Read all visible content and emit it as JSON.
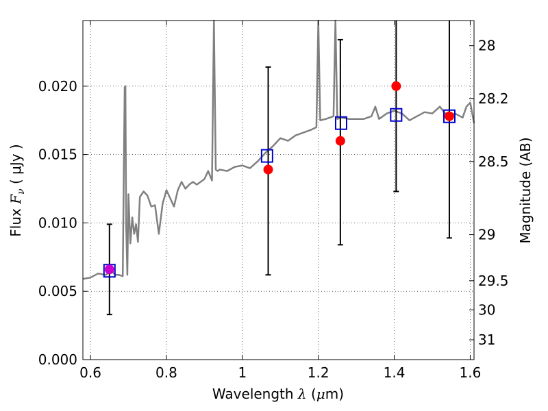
{
  "chart_data": {
    "type": "line",
    "xlabel_prefix": "Wavelength  ",
    "xlabel_symbol": "λ",
    "xlabel_units_open": " (",
    "xlabel_units_mu": "μ",
    "xlabel_units_close": "m)",
    "ylabel_prefix": "Flux  ",
    "ylabel_symbol": "F",
    "ylabel_sub": "ν",
    "ylabel_units": "  ( μJy )",
    "y2label": "Magnitude (AB)",
    "xlim": [
      0.58,
      1.61
    ],
    "ylim": [
      0.0,
      0.0248
    ],
    "grid": true,
    "x_ticks": [
      {
        "v": 0.6,
        "label": "0.6"
      },
      {
        "v": 0.8,
        "label": "0.8"
      },
      {
        "v": 1.0,
        "label": "1"
      },
      {
        "v": 1.2,
        "label": "1.2"
      },
      {
        "v": 1.4,
        "label": "1.4"
      },
      {
        "v": 1.6,
        "label": "1.6"
      }
    ],
    "y_ticks": [
      {
        "v": 0.0,
        "label": "0.000"
      },
      {
        "v": 0.005,
        "label": "0.005"
      },
      {
        "v": 0.01,
        "label": "0.010"
      },
      {
        "v": 0.015,
        "label": "0.015"
      },
      {
        "v": 0.02,
        "label": "0.020"
      }
    ],
    "y2_ticks": [
      {
        "mag": 28,
        "label": "28",
        "flux": 0.02296
      },
      {
        "mag": 28.2,
        "label": "28.2",
        "flux": 0.0191
      },
      {
        "mag": 28.5,
        "label": "28.5",
        "flux": 0.01449
      },
      {
        "mag": 29,
        "label": "29",
        "flux": 0.00914
      },
      {
        "mag": 29.5,
        "label": "29.5",
        "flux": 0.00577
      },
      {
        "mag": 30,
        "label": "30",
        "flux": 0.00364
      },
      {
        "mag": 31,
        "label": "31",
        "flux": 0.00145
      }
    ],
    "series": [
      {
        "style": "model-spectrum",
        "color": "#808080",
        "x": [
          0.58,
          0.6,
          0.62,
          0.64,
          0.655,
          0.665,
          0.675,
          0.685,
          0.69,
          0.692,
          0.694,
          0.697,
          0.7,
          0.705,
          0.71,
          0.715,
          0.72,
          0.725,
          0.73,
          0.735,
          0.74,
          0.75,
          0.76,
          0.77,
          0.78,
          0.79,
          0.8,
          0.81,
          0.82,
          0.83,
          0.84,
          0.85,
          0.86,
          0.87,
          0.88,
          0.9,
          0.91,
          0.92,
          0.925,
          0.93,
          0.935,
          0.94,
          0.96,
          0.98,
          1.0,
          1.02,
          1.04,
          1.06,
          1.08,
          1.1,
          1.12,
          1.14,
          1.16,
          1.18,
          1.195,
          1.2,
          1.205,
          1.22,
          1.24,
          1.245,
          1.25,
          1.26,
          1.28,
          1.3,
          1.32,
          1.34,
          1.35,
          1.36,
          1.38,
          1.4,
          1.42,
          1.44,
          1.46,
          1.48,
          1.5,
          1.52,
          1.54,
          1.56,
          1.58,
          1.59,
          1.6,
          1.61
        ],
        "y": [
          0.0059,
          0.006,
          0.0063,
          0.0062,
          0.0065,
          0.0062,
          0.0062,
          0.0061,
          0.0199,
          0.02,
          0.0098,
          0.0062,
          0.0121,
          0.0085,
          0.0104,
          0.0092,
          0.0099,
          0.0086,
          0.0119,
          0.0121,
          0.0123,
          0.012,
          0.0112,
          0.0113,
          0.0092,
          0.0114,
          0.0124,
          0.0118,
          0.0112,
          0.0124,
          0.013,
          0.0125,
          0.0128,
          0.013,
          0.0128,
          0.0132,
          0.0138,
          0.0131,
          0.0248,
          0.0139,
          0.0138,
          0.0139,
          0.0138,
          0.0141,
          0.0142,
          0.014,
          0.0145,
          0.0151,
          0.0156,
          0.0162,
          0.016,
          0.0164,
          0.0166,
          0.0168,
          0.017,
          0.0248,
          0.0175,
          0.0176,
          0.0178,
          0.0248,
          0.0176,
          0.0177,
          0.0176,
          0.0176,
          0.0176,
          0.0178,
          0.0185,
          0.0176,
          0.018,
          0.0182,
          0.018,
          0.0175,
          0.0178,
          0.0181,
          0.018,
          0.0185,
          0.0178,
          0.018,
          0.0177,
          0.0185,
          0.0188,
          0.0173
        ]
      },
      {
        "style": "model-photometry",
        "color": "#0000cc",
        "x": [
          0.65,
          1.065,
          1.26,
          1.405,
          1.545
        ],
        "y": [
          0.0065,
          0.0149,
          0.0173,
          0.0179,
          0.0178
        ]
      },
      {
        "style": "observed-photometry",
        "color": "#ff0000",
        "x": [
          0.65,
          1.068,
          1.258,
          1.405,
          1.545
        ],
        "y": [
          0.0066,
          0.0139,
          0.016,
          0.02,
          0.0178
        ],
        "yerr_low": [
          0.0033,
          0.0062,
          0.0084,
          0.0123,
          0.0089
        ],
        "yerr_high": [
          0.0099,
          0.0214,
          0.0234,
          0.0248,
          0.0248
        ]
      }
    ]
  }
}
